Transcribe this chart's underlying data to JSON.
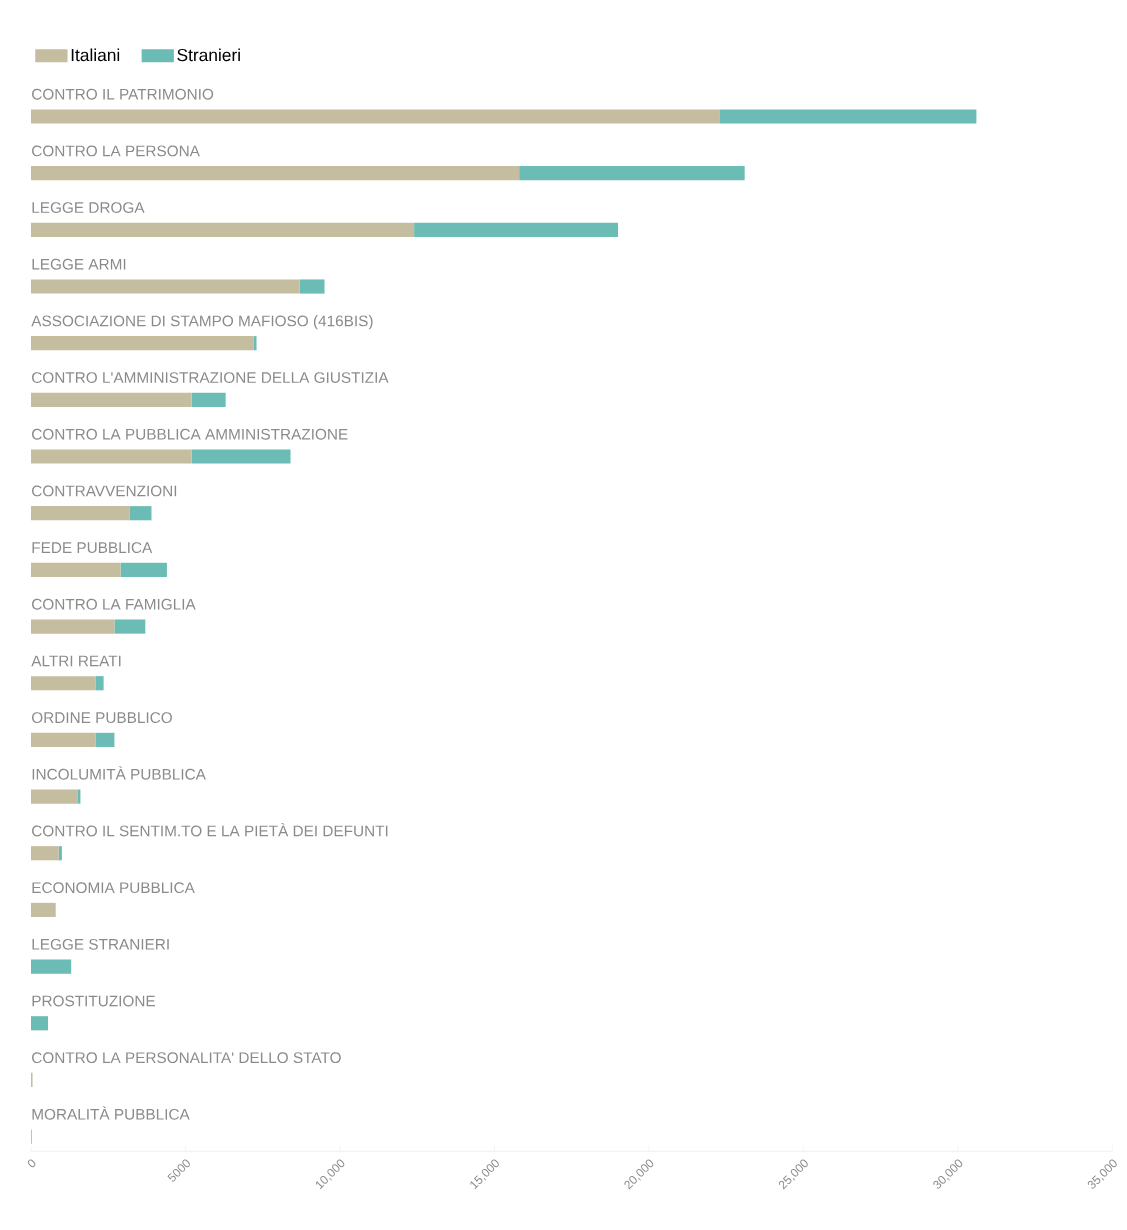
{
  "chart_data": {
    "type": "bar",
    "orientation": "horizontal",
    "stacked": true,
    "legend": "top left",
    "categories": [
      "CONTRO IL PATRIMONIO",
      "CONTRO LA PERSONA",
      "LEGGE DROGA",
      "LEGGE ARMI",
      "ASSOCIAZIONE DI STAMPO MAFIOSO (416BIS)",
      "CONTRO L'AMMINISTRAZIONE DELLA GIUSTIZIA",
      "CONTRO LA PUBBLICA AMMINISTRAZIONE",
      "CONTRAVVENZIONI",
      "FEDE PUBBLICA",
      "CONTRO LA FAMIGLIA",
      "ALTRI REATI",
      "ORDINE PUBBLICO",
      "INCOLUMITÀ PUBBLICA",
      "CONTRO IL SENTIM.TO E LA PIETÀ DEI DEFUNTI",
      "ECONOMIA PUBBLICA",
      "LEGGE STRANIERI",
      "PROSTITUZIONE",
      "CONTRO LA PERSONALITA' DELLO STATO",
      "MORALITÀ PUBBLICA"
    ],
    "series": [
      {
        "name": "Italiani",
        "color": "#c5bd9f",
        "values": [
          22300,
          15800,
          12400,
          8700,
          7200,
          5200,
          5200,
          3200,
          2900,
          2700,
          2100,
          2100,
          1500,
          900,
          800,
          0,
          0,
          50,
          30
        ]
      },
      {
        "name": "Stranieri",
        "color": "#6bbcb5",
        "values": [
          8300,
          7300,
          6600,
          800,
          100,
          1100,
          3200,
          700,
          1500,
          1000,
          250,
          600,
          100,
          100,
          0,
          1300,
          550,
          0,
          0
        ]
      }
    ],
    "xlim": [
      0,
      35000
    ],
    "xticks": [
      0,
      5000,
      {
        "value": 10000,
        "label": "10,000"
      },
      {
        "value": 15000,
        "label": "15,000"
      },
      {
        "value": 20000,
        "label": "20,000"
      },
      {
        "value": 25000,
        "label": "25,000"
      },
      {
        "value": 30000,
        "label": "30,000"
      },
      {
        "value": 35000,
        "label": "35,000"
      }
    ]
  }
}
